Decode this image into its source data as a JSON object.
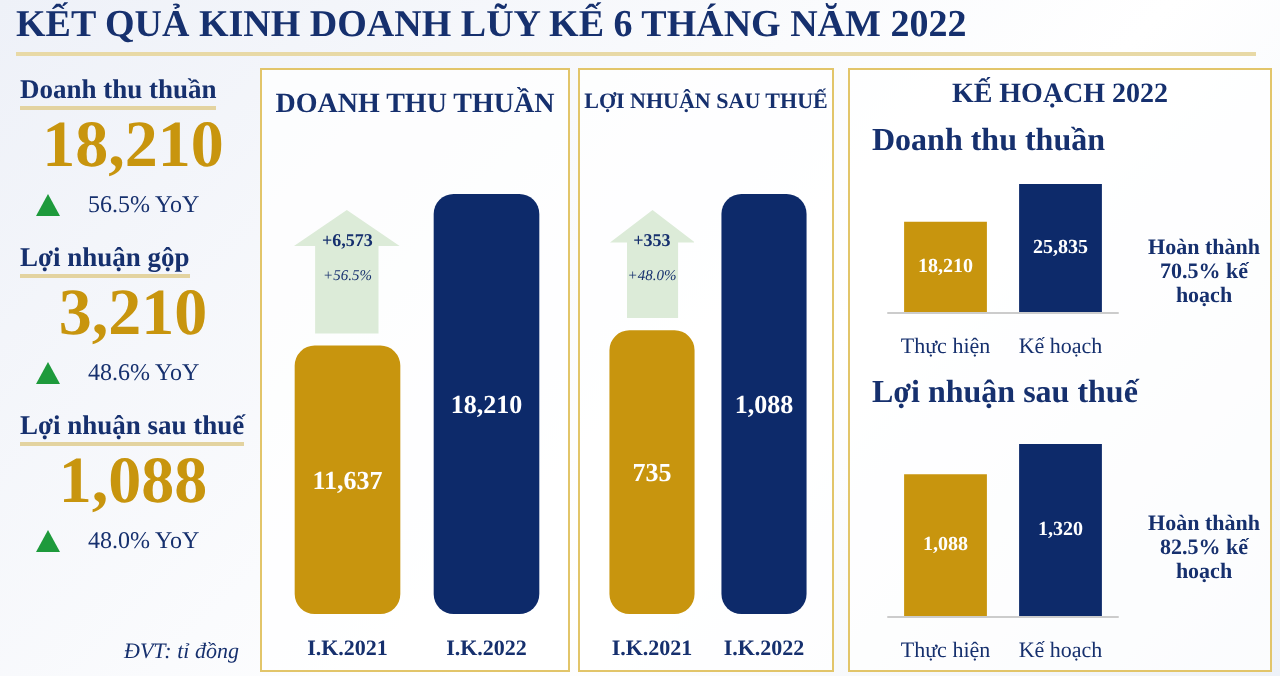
{
  "chart_data": [
    {
      "type": "other",
      "title": "KẾT QUẢ KINH DOANH LŨY KẾ 6 THÁNG NĂM 2022",
      "annotations": [
        "Doanh thu thuần",
        "18,210",
        "56.5% YoY",
        "Lợi nhuận gộp",
        "3,210",
        "48.6% YoY",
        "Lợi nhuận sau thuế",
        "1,088",
        "48.0% YoY",
        "ĐVT: tỉ đồng"
      ]
    },
    {
      "type": "bar",
      "title": "DOANH THU THUẦN",
      "categories": [
        "I.K.2021",
        "I.K.2022"
      ],
      "values": [
        11637,
        18210
      ],
      "colors": [
        "#c8950e",
        "#0d2a6a"
      ],
      "value_labels": [
        "11,637",
        "18,210"
      ],
      "annotations": [
        "+6,573",
        "+56.5%"
      ]
    },
    {
      "type": "bar",
      "title": "LỢI NHUẬN SAU THUẾ",
      "categories": [
        "I.K.2021",
        "I.K.2022"
      ],
      "values": [
        735,
        1088
      ],
      "colors": [
        "#c8950e",
        "#0d2a6a"
      ],
      "value_labels": [
        "735",
        "1,088"
      ],
      "annotations": [
        "+353",
        "+48.0%"
      ]
    },
    {
      "type": "bar",
      "subtitle": "KẾ HOẠCH 2022",
      "title": "Doanh thu thuần",
      "categories": [
        "Thực hiện",
        "Kế hoạch"
      ],
      "values": [
        18210,
        25835
      ],
      "colors": [
        "#c8950e",
        "#0d2a6a"
      ],
      "value_labels": [
        "18,210",
        "25,835"
      ],
      "annotations": [
        "Hoàn thành 70.5% kế hoạch"
      ]
    },
    {
      "type": "bar",
      "title": "Lợi nhuận sau thuế",
      "categories": [
        "Thực hiện",
        "Kế hoạch"
      ],
      "values": [
        1088,
        1320
      ],
      "colors": [
        "#c8950e",
        "#0d2a6a"
      ],
      "value_labels": [
        "1,088",
        "1,320"
      ],
      "annotations": [
        "Hoàn thành 82.5% kế hoạch"
      ]
    }
  ]
}
